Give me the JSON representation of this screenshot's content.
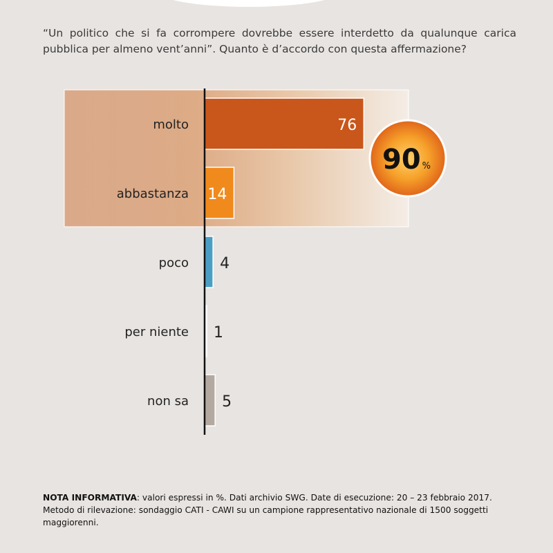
{
  "question": "“Un politico che si fa corrompere dovrebbe essere interdetto da qualunque carica pubblica per almeno vent’anni”. Quanto è d’accordo con questa affermazione?",
  "chart_data": {
    "type": "bar",
    "orientation": "horizontal",
    "title": "",
    "xlabel": "",
    "ylabel": "",
    "xlim": [
      0,
      100
    ],
    "categories": [
      "molto",
      "abbastanza",
      "poco",
      "per niente",
      "non sa"
    ],
    "values": [
      76,
      14,
      4,
      1,
      5
    ],
    "colors": [
      "#c9561a",
      "#f08a1c",
      "#4a9ec4",
      "#ffffff",
      "#b3a9a1"
    ],
    "summary": {
      "value": "90",
      "unit": "%",
      "categories": [
        "molto",
        "abbastanza"
      ]
    },
    "grid": false,
    "legend": "none"
  },
  "note": {
    "label": "NOTA INFORMATIVA",
    "text": ": valori espressi in %. Dati archivio SWG. Date di esecuzione: 20 – 23 febbraio 2017. Metodo di rilevazione: sondaggio CATI - CAWI su un campione rappresentativo nazionale di 1500 soggetti maggiorenni."
  }
}
